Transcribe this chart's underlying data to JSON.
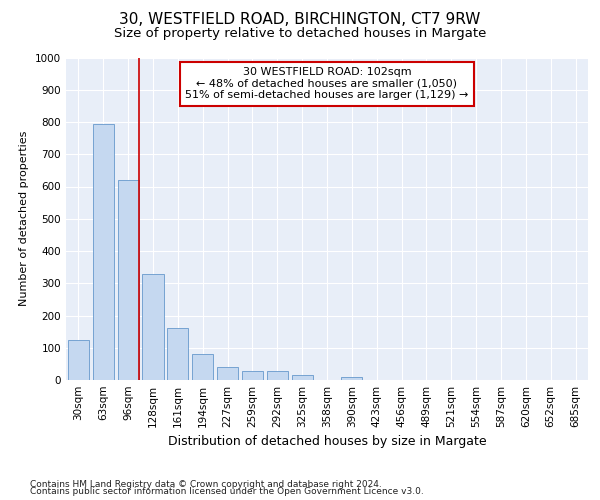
{
  "title1": "30, WESTFIELD ROAD, BIRCHINGTON, CT7 9RW",
  "title2": "Size of property relative to detached houses in Margate",
  "xlabel": "Distribution of detached houses by size in Margate",
  "ylabel": "Number of detached properties",
  "categories": [
    "30sqm",
    "63sqm",
    "96sqm",
    "128sqm",
    "161sqm",
    "194sqm",
    "227sqm",
    "259sqm",
    "292sqm",
    "325sqm",
    "358sqm",
    "390sqm",
    "423sqm",
    "456sqm",
    "489sqm",
    "521sqm",
    "554sqm",
    "587sqm",
    "620sqm",
    "652sqm",
    "685sqm"
  ],
  "values": [
    125,
    795,
    620,
    330,
    162,
    80,
    40,
    28,
    28,
    17,
    0,
    10,
    0,
    0,
    0,
    0,
    0,
    0,
    0,
    0,
    0
  ],
  "bar_color": "#c5d8f0",
  "bar_edge_color": "#6699cc",
  "red_line_index": 2,
  "annotation_line1": "30 WESTFIELD ROAD: 102sqm",
  "annotation_line2": "← 48% of detached houses are smaller (1,050)",
  "annotation_line3": "51% of semi-detached houses are larger (1,129) →",
  "annotation_box_color": "#ffffff",
  "annotation_box_edge_color": "#cc0000",
  "ylim": [
    0,
    1000
  ],
  "yticks": [
    0,
    100,
    200,
    300,
    400,
    500,
    600,
    700,
    800,
    900,
    1000
  ],
  "footnote1": "Contains HM Land Registry data © Crown copyright and database right 2024.",
  "footnote2": "Contains public sector information licensed under the Open Government Licence v3.0.",
  "fig_background": "#ffffff",
  "plot_background": "#e8eef8",
  "grid_color": "#ffffff",
  "title1_fontsize": 11,
  "title2_fontsize": 9.5,
  "xlabel_fontsize": 9,
  "ylabel_fontsize": 8,
  "tick_fontsize": 7.5,
  "annotation_fontsize": 8,
  "footnote_fontsize": 6.5
}
